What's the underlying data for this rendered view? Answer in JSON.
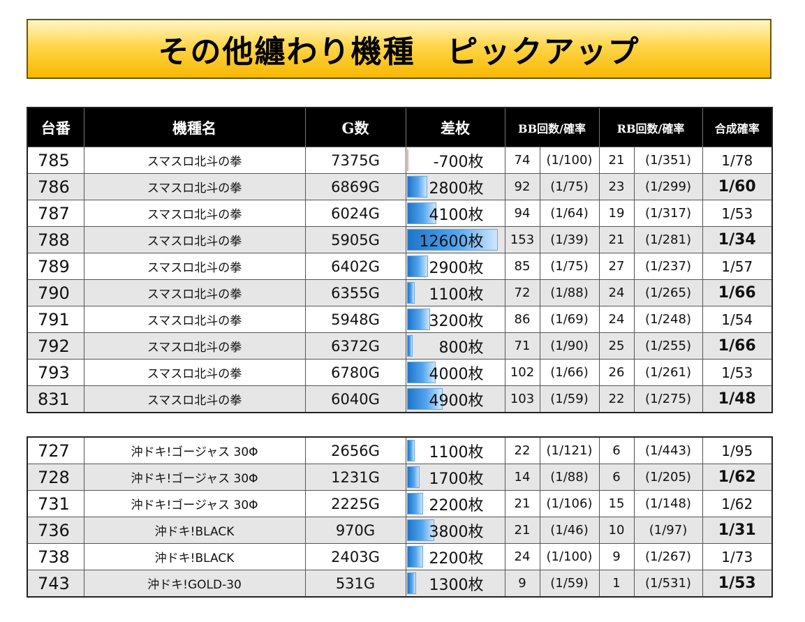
{
  "title": "その他纏わり機種　ピックアップ",
  "headers": [
    "台番",
    "機種名",
    "G数",
    "差枚",
    "BB回数/確率",
    "RB回数/確率",
    "合成確率"
  ],
  "accent_colors": {
    "banner": "#ffd64a",
    "bar": "#1f74c8",
    "header_bg": "#000000",
    "negative_bar": "#f3a0a0"
  },
  "chart_data": {
    "type": "table",
    "sa_unit": "枚",
    "sa_range": [
      0,
      12600
    ],
    "groups": [
      {
        "rows": [
          {
            "num": "785",
            "name": "スマスロ北斗の拳",
            "games": "7375G",
            "sa": -700,
            "bb": "74",
            "bb_rate": "(1/100)",
            "rb": "21",
            "rb_rate": "(1/351)",
            "comp": "1/78",
            "comp_bold": false
          },
          {
            "num": "786",
            "name": "スマスロ北斗の拳",
            "games": "6869G",
            "sa": 2800,
            "bb": "92",
            "bb_rate": "(1/75)",
            "rb": "23",
            "rb_rate": "(1/299)",
            "comp": "1/60",
            "comp_bold": true
          },
          {
            "num": "787",
            "name": "スマスロ北斗の拳",
            "games": "6024G",
            "sa": 4100,
            "bb": "94",
            "bb_rate": "(1/64)",
            "rb": "19",
            "rb_rate": "(1/317)",
            "comp": "1/53",
            "comp_bold": false
          },
          {
            "num": "788",
            "name": "スマスロ北斗の拳",
            "games": "5905G",
            "sa": 12600,
            "bb": "153",
            "bb_rate": "(1/39)",
            "rb": "21",
            "rb_rate": "(1/281)",
            "comp": "1/34",
            "comp_bold": true
          },
          {
            "num": "789",
            "name": "スマスロ北斗の拳",
            "games": "6402G",
            "sa": 2900,
            "bb": "85",
            "bb_rate": "(1/75)",
            "rb": "27",
            "rb_rate": "(1/237)",
            "comp": "1/57",
            "comp_bold": false
          },
          {
            "num": "790",
            "name": "スマスロ北斗の拳",
            "games": "6355G",
            "sa": 1100,
            "bb": "72",
            "bb_rate": "(1/88)",
            "rb": "24",
            "rb_rate": "(1/265)",
            "comp": "1/66",
            "comp_bold": true
          },
          {
            "num": "791",
            "name": "スマスロ北斗の拳",
            "games": "5948G",
            "sa": 3200,
            "bb": "86",
            "bb_rate": "(1/69)",
            "rb": "24",
            "rb_rate": "(1/248)",
            "comp": "1/54",
            "comp_bold": false
          },
          {
            "num": "792",
            "name": "スマスロ北斗の拳",
            "games": "6372G",
            "sa": 800,
            "bb": "71",
            "bb_rate": "(1/90)",
            "rb": "25",
            "rb_rate": "(1/255)",
            "comp": "1/66",
            "comp_bold": true
          },
          {
            "num": "793",
            "name": "スマスロ北斗の拳",
            "games": "6780G",
            "sa": 4000,
            "bb": "102",
            "bb_rate": "(1/66)",
            "rb": "26",
            "rb_rate": "(1/261)",
            "comp": "1/53",
            "comp_bold": false
          },
          {
            "num": "831",
            "name": "スマスロ北斗の拳",
            "games": "6040G",
            "sa": 4900,
            "bb": "103",
            "bb_rate": "(1/59)",
            "rb": "22",
            "rb_rate": "(1/275)",
            "comp": "1/48",
            "comp_bold": true
          }
        ]
      },
      {
        "rows": [
          {
            "num": "727",
            "name": "沖ドキ!ゴージャス 30Φ",
            "games": "2656G",
            "sa": 1100,
            "bb": "22",
            "bb_rate": "(1/121)",
            "rb": "6",
            "rb_rate": "(1/443)",
            "comp": "1/95",
            "comp_bold": false
          },
          {
            "num": "728",
            "name": "沖ドキ!ゴージャス 30Φ",
            "games": "1231G",
            "sa": 1700,
            "bb": "14",
            "bb_rate": "(1/88)",
            "rb": "6",
            "rb_rate": "(1/205)",
            "comp": "1/62",
            "comp_bold": true
          },
          {
            "num": "731",
            "name": "沖ドキ!ゴージャス 30Φ",
            "games": "2225G",
            "sa": 2200,
            "bb": "21",
            "bb_rate": "(1/106)",
            "rb": "15",
            "rb_rate": "(1/148)",
            "comp": "1/62",
            "comp_bold": false
          },
          {
            "num": "736",
            "name": "沖ドキ!BLACK",
            "games": "970G",
            "sa": 3800,
            "bb": "21",
            "bb_rate": "(1/46)",
            "rb": "10",
            "rb_rate": "(1/97)",
            "comp": "1/31",
            "comp_bold": true
          },
          {
            "num": "738",
            "name": "沖ドキ!BLACK",
            "games": "2403G",
            "sa": 2200,
            "bb": "24",
            "bb_rate": "(1/100)",
            "rb": "9",
            "rb_rate": "(1/267)",
            "comp": "1/73",
            "comp_bold": false
          },
          {
            "num": "743",
            "name": "沖ドキ!GOLD-30",
            "games": "531G",
            "sa": 1300,
            "bb": "9",
            "bb_rate": "(1/59)",
            "rb": "1",
            "rb_rate": "(1/531)",
            "comp": "1/53",
            "comp_bold": true
          }
        ]
      }
    ]
  }
}
